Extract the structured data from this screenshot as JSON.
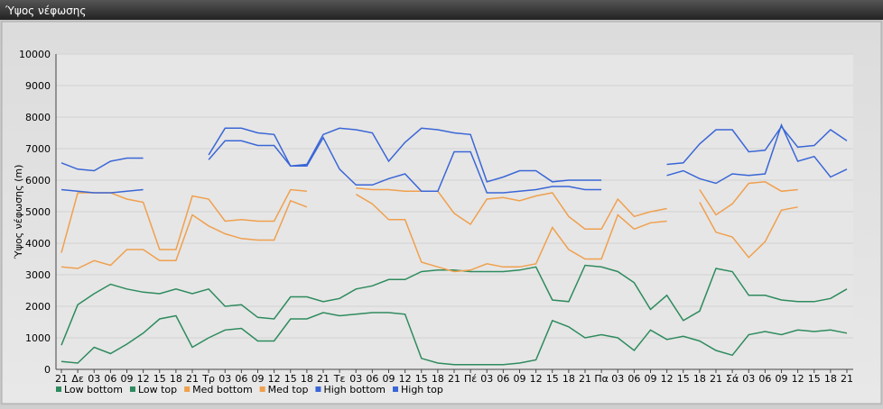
{
  "chart_data": {
    "type": "line",
    "title": "Ύψος νέφωσης",
    "y_label": "Ύψος νέφωσης (m)",
    "categories": [
      "21",
      "Δε",
      "03",
      "06",
      "09",
      "12",
      "15",
      "18",
      "21",
      "Τρ",
      "03",
      "06",
      "09",
      "12",
      "15",
      "18",
      "21",
      "Τε",
      "03",
      "06",
      "09",
      "12",
      "15",
      "18",
      "21",
      "Πέ",
      "03",
      "06",
      "09",
      "12",
      "15",
      "18",
      "21",
      "Πα",
      "03",
      "06",
      "09",
      "12",
      "15",
      "18",
      "21",
      "Σά",
      "03",
      "06",
      "09",
      "12",
      "15",
      "18",
      "21"
    ],
    "ylim": [
      0,
      10000
    ],
    "yticks": [
      0,
      1000,
      2000,
      3000,
      4000,
      5000,
      6000,
      7000,
      8000,
      9000,
      10000
    ],
    "grid": true,
    "legend": "bottom",
    "series": [
      {
        "name": "Low bottom",
        "color": "#2e8b5e",
        "values": [
          250,
          200,
          700,
          500,
          800,
          1150,
          1600,
          1700,
          700,
          1000,
          1250,
          1300,
          900,
          900,
          1600,
          1600,
          1800,
          1700,
          1750,
          1800,
          1800,
          1750,
          350,
          200,
          150,
          150,
          150,
          150,
          200,
          300,
          1550,
          1350,
          1000,
          1100,
          1000,
          600,
          1250,
          950,
          1050,
          900,
          600,
          450,
          1100,
          1200,
          1100,
          1250,
          1200,
          1250,
          1150
        ]
      },
      {
        "name": "Low top",
        "color": "#2e8b5e",
        "values": [
          770,
          2050,
          2400,
          2700,
          2550,
          2450,
          2400,
          2550,
          2400,
          2550,
          2000,
          2050,
          1650,
          1600,
          2300,
          2300,
          2150,
          2250,
          2550,
          2650,
          2850,
          2850,
          3100,
          3150,
          3150,
          3100,
          3100,
          3100,
          3150,
          3250,
          2200,
          2150,
          3300,
          3250,
          3100,
          2750,
          1900,
          2350,
          1550,
          1850,
          3200,
          3100,
          2350,
          2350,
          2200,
          2150,
          2150,
          2250,
          2550
        ]
      },
      {
        "name": "Med bottom",
        "color": "#f0a04e",
        "values": [
          3250,
          3200,
          3450,
          3300,
          3800,
          3800,
          3450,
          3450,
          4900,
          4550,
          4300,
          4150,
          4100,
          4100,
          5350,
          5150,
          null,
          null,
          5550,
          5250,
          4750,
          4750,
          3400,
          3250,
          3100,
          3150,
          3350,
          3250,
          3250,
          3350,
          4500,
          3800,
          3500,
          3500,
          4900,
          4450,
          4650,
          4700,
          null,
          5300,
          4350,
          4200,
          3550,
          4050,
          5050,
          5150,
          null,
          null,
          null
        ]
      },
      {
        "name": "Med top",
        "color": "#f0a04e",
        "values": [
          3700,
          5600,
          5600,
          5600,
          5400,
          5300,
          3800,
          3800,
          5500,
          5400,
          4700,
          4750,
          4700,
          4700,
          5700,
          5650,
          null,
          null,
          5750,
          5700,
          5700,
          5650,
          5650,
          5650,
          4950,
          4600,
          5400,
          5450,
          5350,
          5500,
          5600,
          4850,
          4450,
          4450,
          5400,
          4850,
          5000,
          5100,
          null,
          5700,
          4900,
          5250,
          5900,
          5950,
          5650,
          5700,
          null,
          null,
          null
        ]
      },
      {
        "name": "High bottom",
        "color": "#3a66d6",
        "values": [
          5700,
          5650,
          5600,
          5600,
          5650,
          5700,
          null,
          null,
          null,
          6650,
          7250,
          7250,
          7100,
          7100,
          6450,
          6450,
          7350,
          6350,
          5850,
          5850,
          6050,
          6200,
          5650,
          5650,
          6900,
          6900,
          5600,
          5600,
          5650,
          5700,
          5800,
          5800,
          5700,
          5700,
          null,
          null,
          null,
          6150,
          6300,
          6050,
          5900,
          6200,
          6150,
          6200,
          7750,
          6600,
          6750,
          6100,
          6350
        ]
      },
      {
        "name": "High top",
        "color": "#3a66d6",
        "values": [
          6550,
          6350,
          6300,
          6600,
          6700,
          6700,
          null,
          null,
          null,
          6800,
          7650,
          7650,
          7500,
          7450,
          6450,
          6500,
          7450,
          7650,
          7600,
          7500,
          6600,
          7200,
          7650,
          7600,
          7500,
          7450,
          5950,
          6100,
          6300,
          6300,
          5950,
          6000,
          6000,
          6000,
          null,
          null,
          null,
          6500,
          6550,
          7150,
          7600,
          7600,
          6900,
          6950,
          7700,
          7050,
          7100,
          7600,
          7250
        ]
      }
    ]
  }
}
